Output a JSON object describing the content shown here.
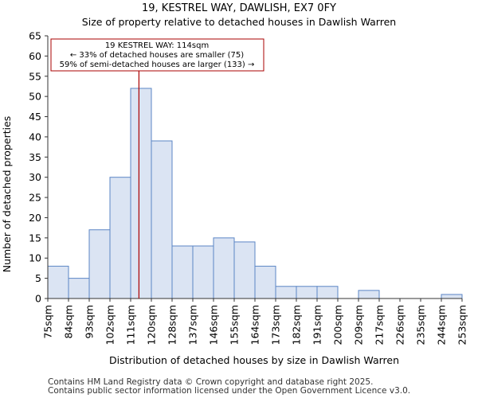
{
  "chart_data": {
    "type": "bar",
    "title_line1": "19, KESTREL WAY, DAWLISH, EX7 0FY",
    "title_line2": "Size of property relative to detached houses in Dawlish Warren",
    "xlabel": "Distribution of detached houses by size in Dawlish Warren",
    "ylabel": "Number of detached properties",
    "x_tick_labels": [
      "75sqm",
      "84sqm",
      "93sqm",
      "102sqm",
      "111sqm",
      "120sqm",
      "128sqm",
      "137sqm",
      "146sqm",
      "155sqm",
      "164sqm",
      "173sqm",
      "182sqm",
      "191sqm",
      "200sqm",
      "209sqm",
      "217sqm",
      "226sqm",
      "235sqm",
      "244sqm",
      "253sqm"
    ],
    "values": [
      8,
      5,
      17,
      30,
      52,
      39,
      13,
      13,
      15,
      14,
      8,
      3,
      3,
      3,
      0,
      2,
      0,
      0,
      0,
      1
    ],
    "ylim": [
      0,
      65
    ],
    "yticks": [
      0,
      5,
      10,
      15,
      20,
      25,
      30,
      35,
      40,
      45,
      50,
      55,
      60,
      65
    ],
    "marker_bin_position": 4.4,
    "annotation": {
      "line1": "19 KESTREL WAY: 114sqm",
      "line2": "← 33% of detached houses are smaller (75)",
      "line3": "59% of semi-detached houses are larger (133) →"
    },
    "colors": {
      "bar_fill": "#dbe4f3",
      "bar_stroke": "#5b86c5",
      "marker": "#aa0000",
      "annotation_border": "#aa0000",
      "axis": "#333333"
    }
  },
  "footer": {
    "line1": "Contains HM Land Registry data © Crown copyright and database right 2025.",
    "line2": "Contains public sector information licensed under the Open Government Licence v3.0."
  }
}
